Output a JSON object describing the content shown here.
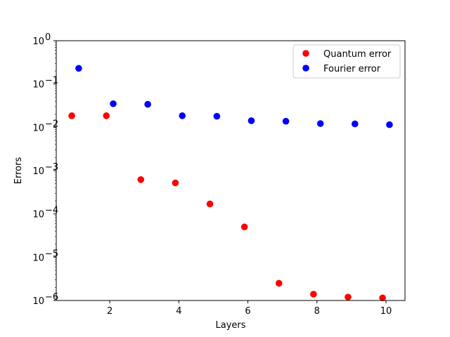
{
  "chart_data": {
    "type": "scatter",
    "title": "",
    "xlabel": "Layers",
    "ylabel": "Errors",
    "xlim": [
      0.45,
      10.55
    ],
    "ylim": [
      1e-06,
      1
    ],
    "yscale": "log",
    "grid": false,
    "legend_position": "top-right",
    "xticks": [
      2,
      4,
      6,
      8,
      10
    ],
    "xtick_labels": [
      "2",
      "4",
      "6",
      "8",
      "10"
    ],
    "yticks": [
      {
        "value": 1e-06,
        "base": "10",
        "exponent": "−6"
      },
      {
        "value": 1e-05,
        "base": "10",
        "exponent": "−5"
      },
      {
        "value": 0.0001,
        "base": "10",
        "exponent": "−4"
      },
      {
        "value": 0.001,
        "base": "10",
        "exponent": "−3"
      },
      {
        "value": 0.01,
        "base": "10",
        "exponent": "−2"
      },
      {
        "value": 0.1,
        "base": "10",
        "exponent": "−1"
      },
      {
        "value": 1,
        "base": "10",
        "exponent": "0"
      }
    ],
    "series": [
      {
        "name": "Quantum error",
        "color": "#ff0000",
        "x": [
          0.9,
          1.9,
          2.9,
          3.9,
          4.9,
          5.9,
          6.9,
          7.9,
          8.9,
          9.9
        ],
        "y": [
          0.0185,
          0.0185,
          0.00062,
          0.00052,
          0.00017,
          5e-05,
          2.5e-06,
          1.4e-06,
          1.2e-06,
          1.15e-06
        ]
      },
      {
        "name": "Fourier error",
        "color": "#0000ff",
        "x": [
          1.1,
          2.1,
          3.1,
          4.1,
          5.1,
          6.1,
          7.1,
          8.1,
          9.1,
          10.1
        ],
        "y": [
          0.23,
          0.035,
          0.034,
          0.0185,
          0.018,
          0.0142,
          0.0138,
          0.0122,
          0.012,
          0.0115
        ]
      }
    ]
  }
}
